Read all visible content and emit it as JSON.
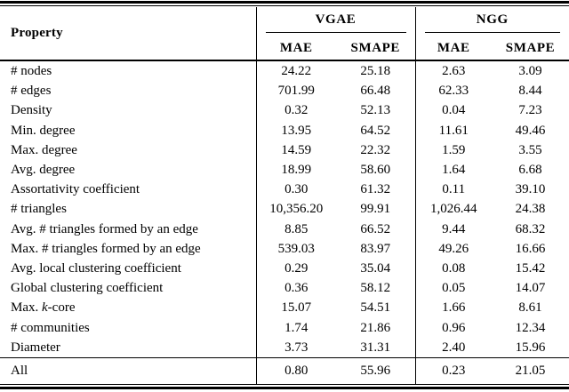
{
  "table": {
    "property_header": "Property",
    "groups": [
      {
        "label": "VGAE",
        "columns": [
          "MAE",
          "SMAPE"
        ]
      },
      {
        "label": "NGG",
        "columns": [
          "MAE",
          "SMAPE"
        ]
      }
    ],
    "rows": [
      {
        "label": "# nodes",
        "values": [
          "24.22",
          "25.18",
          "2.63",
          "3.09"
        ]
      },
      {
        "label": "# edges",
        "values": [
          "701.99",
          "66.48",
          "62.33",
          "8.44"
        ]
      },
      {
        "label": "Density",
        "values": [
          "0.32",
          "52.13",
          "0.04",
          "7.23"
        ]
      },
      {
        "label": "Min. degree",
        "values": [
          "13.95",
          "64.52",
          "11.61",
          "49.46"
        ]
      },
      {
        "label": "Max. degree",
        "values": [
          "14.59",
          "22.32",
          "1.59",
          "3.55"
        ]
      },
      {
        "label": "Avg. degree",
        "values": [
          "18.99",
          "58.60",
          "1.64",
          "6.68"
        ]
      },
      {
        "label": "Assortativity coefficient",
        "values": [
          "0.30",
          "61.32",
          "0.11",
          "39.10"
        ]
      },
      {
        "label": "# triangles",
        "values": [
          "10,356.20",
          "99.91",
          "1,026.44",
          "24.38"
        ]
      },
      {
        "label": "Avg. # triangles formed by an edge",
        "values": [
          "8.85",
          "66.52",
          "9.44",
          "68.32"
        ]
      },
      {
        "label": "Max. # triangles formed by an edge",
        "values": [
          "539.03",
          "83.97",
          "49.26",
          "16.66"
        ]
      },
      {
        "label": "Avg. local clustering coefficient",
        "values": [
          "0.29",
          "35.04",
          "0.08",
          "15.42"
        ]
      },
      {
        "label": "Global clustering coefficient",
        "values": [
          "0.36",
          "58.12",
          "0.05",
          "14.07"
        ]
      },
      {
        "label": "Max. k-core",
        "parts": [
          {
            "text": "Max. "
          },
          {
            "text": "k",
            "italic": true
          },
          {
            "text": "-core"
          }
        ],
        "values": [
          "15.07",
          "54.51",
          "1.66",
          "8.61"
        ]
      },
      {
        "label": "# communities",
        "values": [
          "1.74",
          "21.86",
          "0.96",
          "12.34"
        ]
      },
      {
        "label": "Diameter",
        "values": [
          "3.73",
          "31.31",
          "2.40",
          "15.96"
        ]
      }
    ],
    "footer_row": {
      "label": "All",
      "values": [
        "0.80",
        "55.96",
        "0.23",
        "21.05"
      ]
    }
  },
  "colors": {
    "background": "#ffffff",
    "text": "#000000",
    "rule": "#000000"
  }
}
